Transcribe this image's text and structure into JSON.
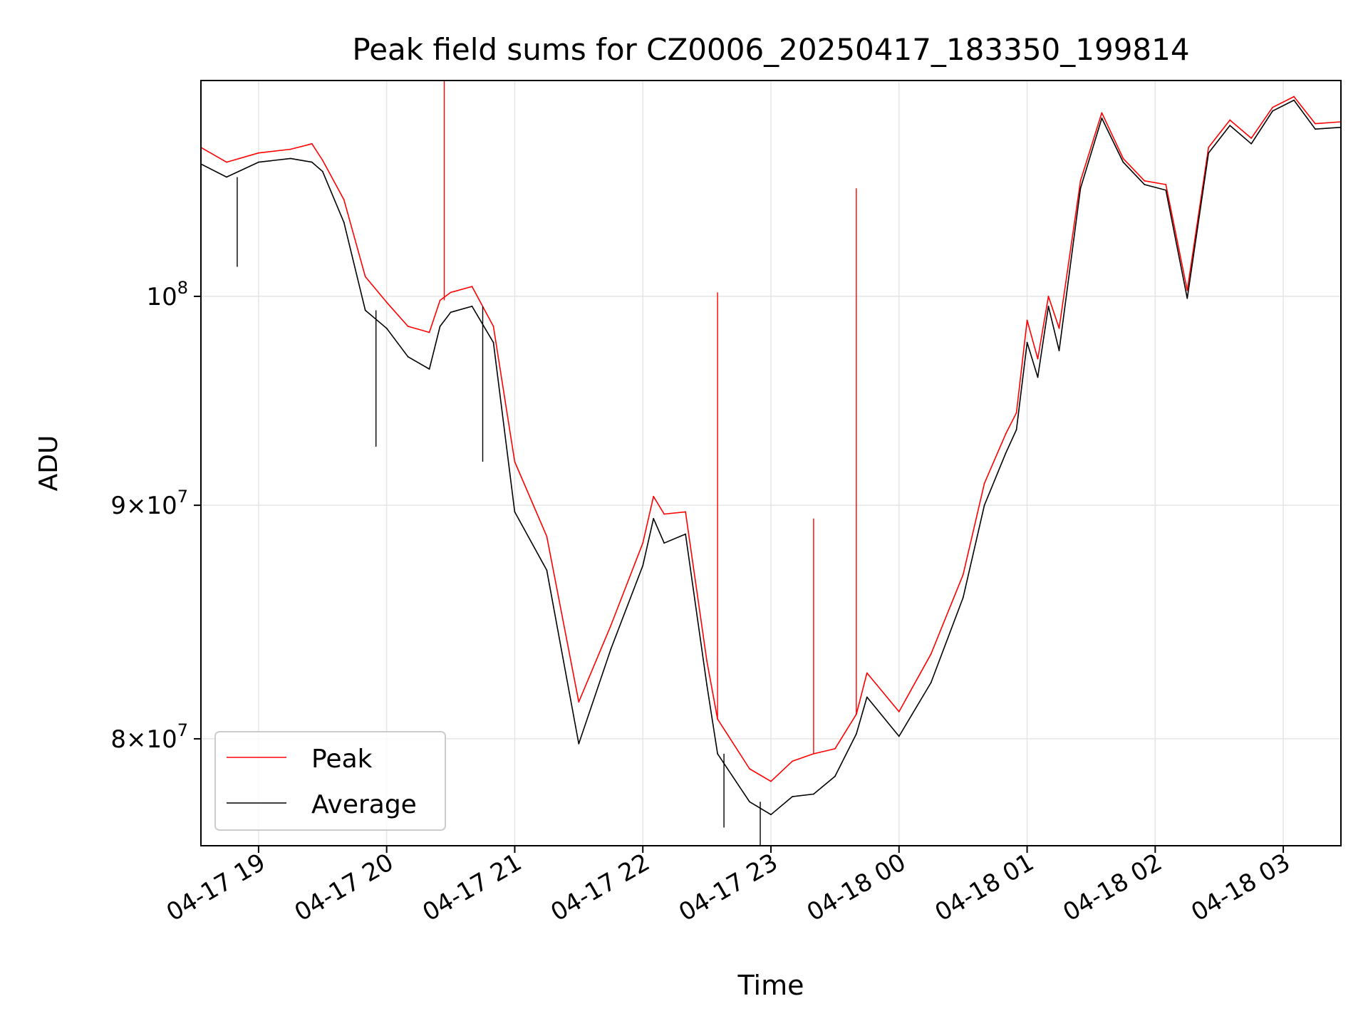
{
  "chart_data": {
    "type": "line",
    "title": "Peak field sums for CZ0006_20250417_183350_199814",
    "xlabel": "Time",
    "ylabel": "ADU",
    "yscale": "log",
    "xlim": [
      "2025-04-17 18:33",
      "2025-04-18 03:27"
    ],
    "ylim": [
      75800000,
      111500000
    ],
    "x_ticks": [
      "04-17 19",
      "04-17 20",
      "04-17 21",
      "04-17 22",
      "04-17 23",
      "04-18 00",
      "04-18 01",
      "04-18 02",
      "04-18 03"
    ],
    "x_tick_times": [
      "2025-04-17 19:00",
      "2025-04-17 20:00",
      "2025-04-17 21:00",
      "2025-04-17 22:00",
      "2025-04-17 23:00",
      "2025-04-18 00:00",
      "2025-04-18 01:00",
      "2025-04-18 02:00",
      "2025-04-18 03:00"
    ],
    "y_ticks": [
      {
        "value": 80000000,
        "mantissa": "8",
        "exp": "7"
      },
      {
        "value": 90000000,
        "mantissa": "9",
        "exp": "7"
      },
      {
        "value": 100000000,
        "mantissa": "",
        "exp": "8"
      }
    ],
    "grid": true,
    "legend_position": "lower-left",
    "series": [
      {
        "name": "Peak",
        "color": "#ff0000",
        "x": [
          "2025-04-17 18:33",
          "2025-04-17 18:45",
          "2025-04-17 19:00",
          "2025-04-17 19:15",
          "2025-04-17 19:25",
          "2025-04-17 19:30",
          "2025-04-17 19:40",
          "2025-04-17 19:50",
          "2025-04-17 20:00",
          "2025-04-17 20:10",
          "2025-04-17 20:20",
          "2025-04-17 20:25",
          "2025-04-17 20:30",
          "2025-04-17 20:40",
          "2025-04-17 20:50",
          "2025-04-17 21:00",
          "2025-04-17 21:15",
          "2025-04-17 21:30",
          "2025-04-17 21:45",
          "2025-04-17 22:00",
          "2025-04-17 22:05",
          "2025-04-17 22:10",
          "2025-04-17 22:20",
          "2025-04-17 22:30",
          "2025-04-17 22:35",
          "2025-04-17 22:50",
          "2025-04-17 23:00",
          "2025-04-17 23:10",
          "2025-04-17 23:20",
          "2025-04-17 23:30",
          "2025-04-17 23:40",
          "2025-04-17 23:45",
          "2025-04-18 00:00",
          "2025-04-18 00:15",
          "2025-04-18 00:30",
          "2025-04-18 00:40",
          "2025-04-18 00:50",
          "2025-04-18 00:55",
          "2025-04-18 01:00",
          "2025-04-18 01:05",
          "2025-04-18 01:10",
          "2025-04-18 01:15",
          "2025-04-18 01:25",
          "2025-04-18 01:35",
          "2025-04-18 01:45",
          "2025-04-18 01:55",
          "2025-04-18 02:05",
          "2025-04-18 02:15",
          "2025-04-18 02:25",
          "2025-04-18 02:35",
          "2025-04-18 02:45",
          "2025-04-18 02:55",
          "2025-04-18 03:05",
          "2025-04-18 03:15",
          "2025-04-18 03:27"
        ],
        "y": [
          107800000,
          107000000,
          107500000,
          107700000,
          108000000,
          107100000,
          105000000,
          101000000,
          99700000,
          98500000,
          98200000,
          99800000,
          100200000,
          100500000,
          98500000,
          92000000,
          88600000,
          81500000,
          84700000,
          88300000,
          90400000,
          89600000,
          89700000,
          83200000,
          80800000,
          78800000,
          78300000,
          79100000,
          79400000,
          79600000,
          81000000,
          82700000,
          81100000,
          83500000,
          86900000,
          91000000,
          93300000,
          94300000,
          98800000,
          96900000,
          100000000,
          98400000,
          106000000,
          109700000,
          107200000,
          106000000,
          105800000,
          100300000,
          107800000,
          109300000,
          108300000,
          110000000,
          110600000,
          109100000,
          109200000
        ]
      },
      {
        "name": "Average",
        "color": "#000000",
        "x": [
          "2025-04-17 18:33",
          "2025-04-17 18:45",
          "2025-04-17 19:00",
          "2025-04-17 19:15",
          "2025-04-17 19:25",
          "2025-04-17 19:30",
          "2025-04-17 19:40",
          "2025-04-17 19:50",
          "2025-04-17 20:00",
          "2025-04-17 20:10",
          "2025-04-17 20:20",
          "2025-04-17 20:25",
          "2025-04-17 20:30",
          "2025-04-17 20:40",
          "2025-04-17 20:50",
          "2025-04-17 21:00",
          "2025-04-17 21:15",
          "2025-04-17 21:30",
          "2025-04-17 21:45",
          "2025-04-17 22:00",
          "2025-04-17 22:05",
          "2025-04-17 22:10",
          "2025-04-17 22:20",
          "2025-04-17 22:30",
          "2025-04-17 22:35",
          "2025-04-17 22:50",
          "2025-04-17 23:00",
          "2025-04-17 23:10",
          "2025-04-17 23:20",
          "2025-04-17 23:30",
          "2025-04-17 23:40",
          "2025-04-17 23:45",
          "2025-04-18 00:00",
          "2025-04-18 00:15",
          "2025-04-18 00:30",
          "2025-04-18 00:40",
          "2025-04-18 00:50",
          "2025-04-18 00:55",
          "2025-04-18 01:00",
          "2025-04-18 01:05",
          "2025-04-18 01:10",
          "2025-04-18 01:15",
          "2025-04-18 01:25",
          "2025-04-18 01:35",
          "2025-04-18 01:45",
          "2025-04-18 01:55",
          "2025-04-18 02:05",
          "2025-04-18 02:15",
          "2025-04-18 02:25",
          "2025-04-18 02:35",
          "2025-04-18 02:45",
          "2025-04-18 02:55",
          "2025-04-18 03:05",
          "2025-04-18 03:15",
          "2025-04-18 03:27"
        ],
        "y": [
          106900000,
          106200000,
          107000000,
          107200000,
          107000000,
          106500000,
          103800000,
          99300000,
          98400000,
          97000000,
          96400000,
          98500000,
          99200000,
          99500000,
          97700000,
          89700000,
          87100000,
          79800000,
          83700000,
          87300000,
          89400000,
          88300000,
          88700000,
          82200000,
          79400000,
          77500000,
          77000000,
          77700000,
          77800000,
          78500000,
          80200000,
          81700000,
          80100000,
          82300000,
          85900000,
          90000000,
          92400000,
          93500000,
          97700000,
          96000000,
          99500000,
          97300000,
          105600000,
          109400000,
          107000000,
          105800000,
          105500000,
          99900000,
          107500000,
          109000000,
          108000000,
          109800000,
          110400000,
          108800000,
          108900000
        ]
      }
    ],
    "spikes": [
      {
        "series": "Peak",
        "x": "2025-04-17 20:27",
        "y": 111500000
      },
      {
        "series": "Peak",
        "x": "2025-04-17 22:35",
        "y": 100200000
      },
      {
        "series": "Peak",
        "x": "2025-04-17 23:20",
        "y": 89400000
      },
      {
        "series": "Peak",
        "x": "2025-04-17 23:40",
        "y": 105600000
      },
      {
        "series": "Average",
        "x": "2025-04-17 18:50",
        "y": 101500000
      },
      {
        "series": "Average",
        "x": "2025-04-17 19:55",
        "y": 92700000
      },
      {
        "series": "Average",
        "x": "2025-04-17 20:45",
        "y": 92000000
      },
      {
        "series": "Average",
        "x": "2025-04-17 22:38",
        "y": 76500000
      },
      {
        "series": "Average",
        "x": "2025-04-17 22:55",
        "y": 75800000
      }
    ]
  }
}
